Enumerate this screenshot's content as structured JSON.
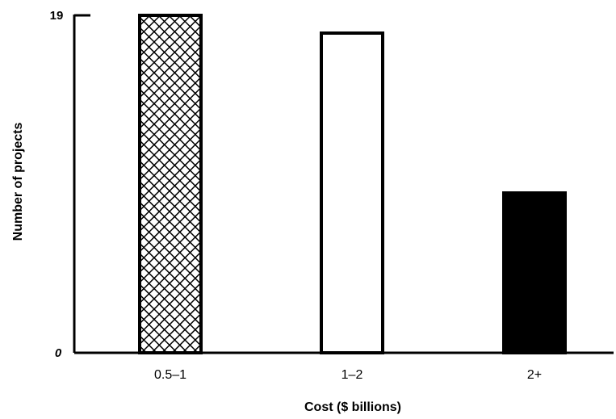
{
  "chart_data": {
    "type": "bar",
    "title": "",
    "xlabel": "Cost ($ billions)",
    "ylabel": "Number of projects",
    "categories": [
      "0.5–1",
      "1–2",
      "2+"
    ],
    "values": [
      19,
      18,
      9
    ],
    "ylim": [
      0,
      19
    ],
    "yticks": [
      "0",
      "19"
    ],
    "bar_fills": [
      "crosshatch",
      "#ffffff",
      "#000000"
    ],
    "grid": false,
    "legend": "none"
  }
}
